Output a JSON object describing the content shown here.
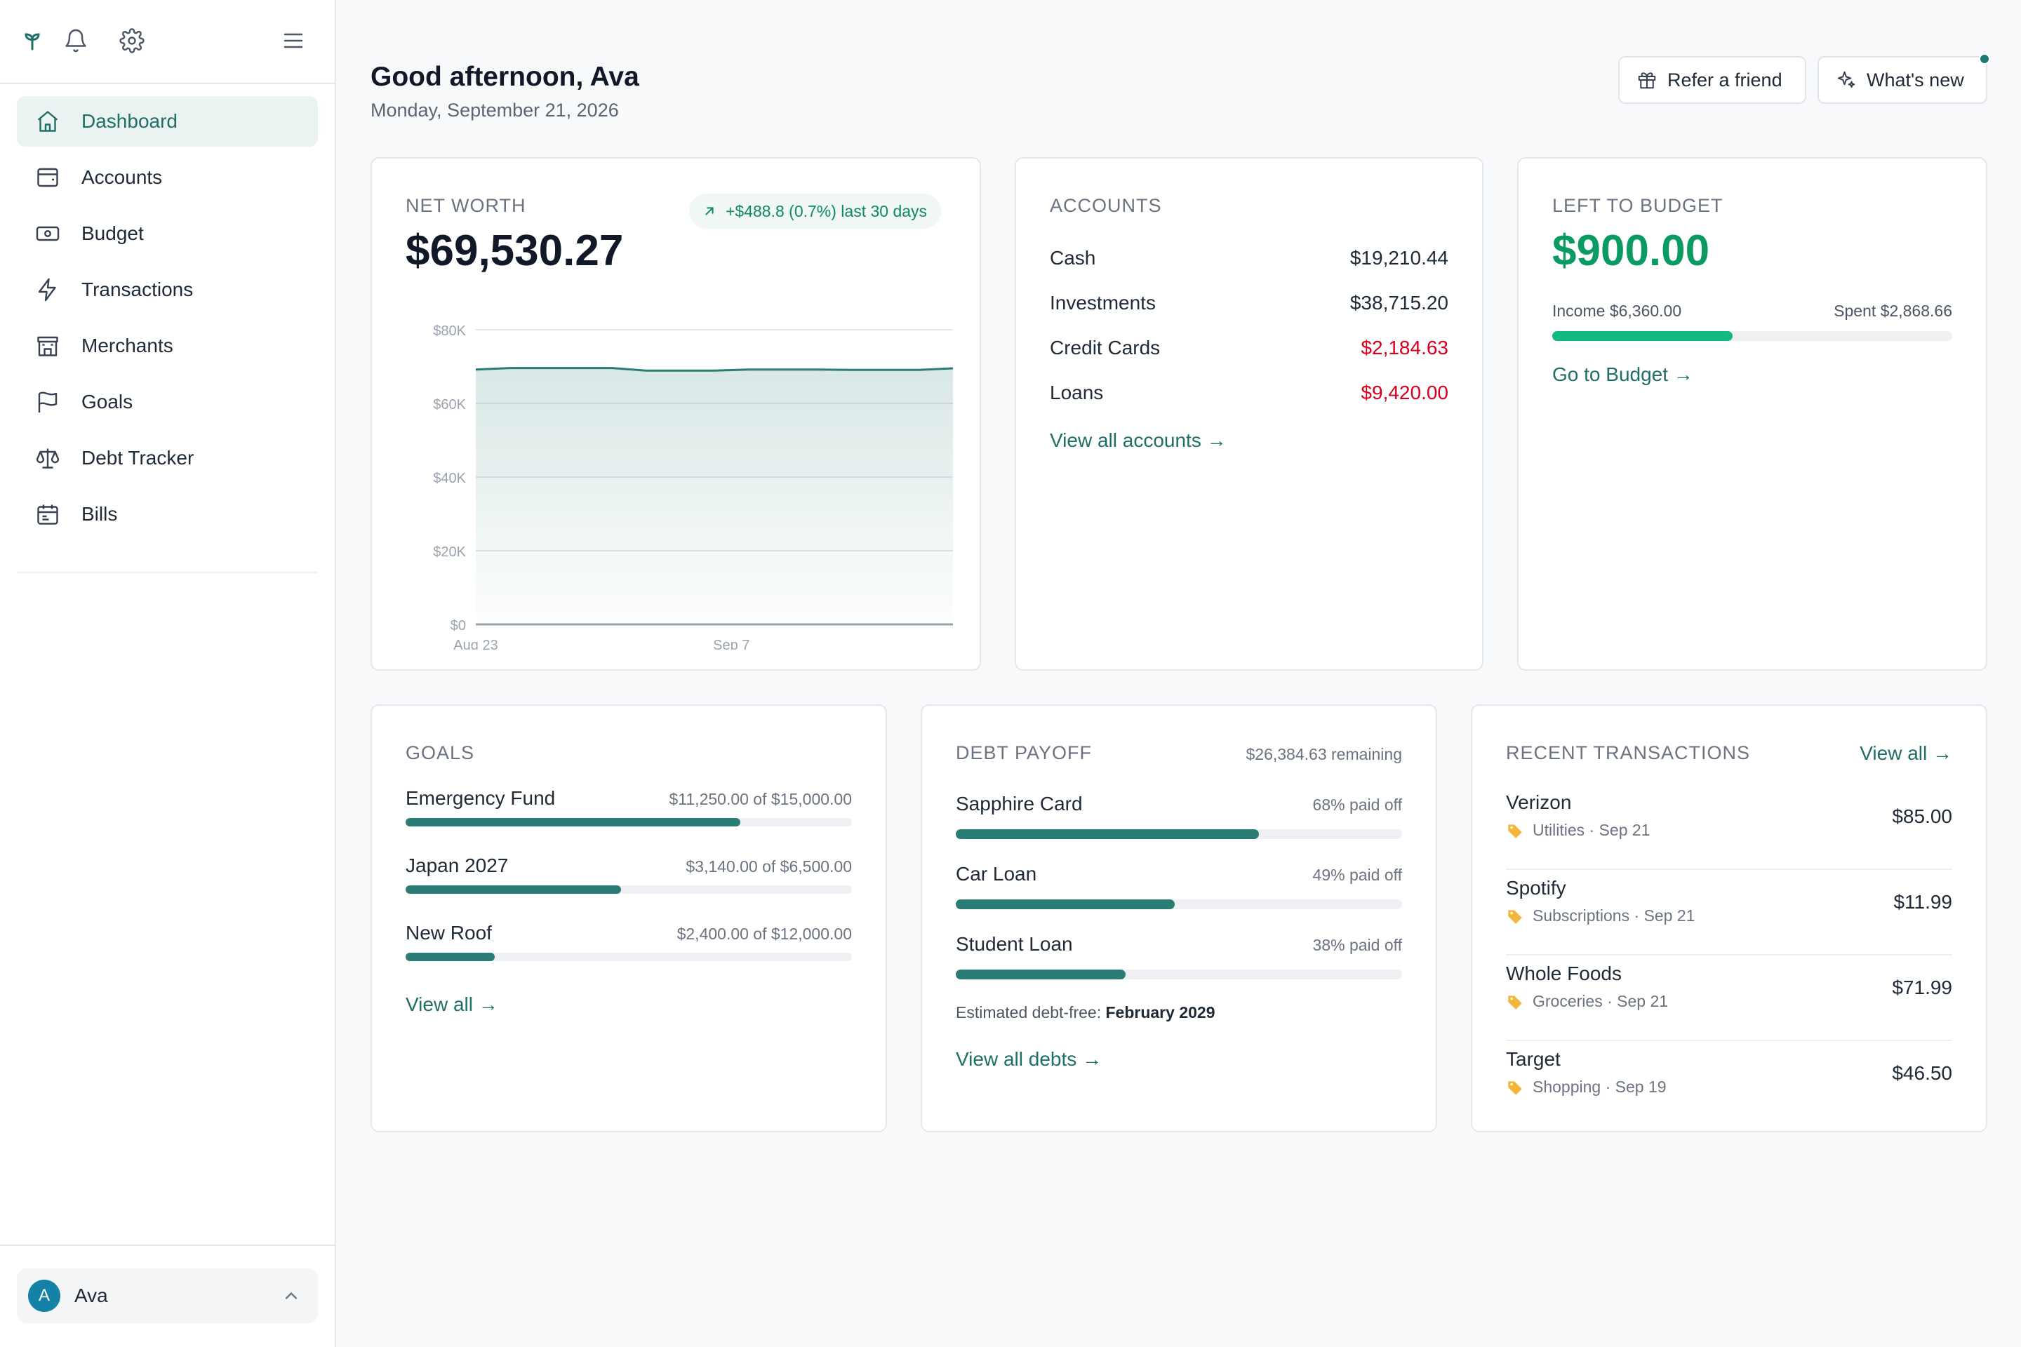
{
  "sidebar": {
    "nav": [
      {
        "label": "Dashboard",
        "icon": "home-icon",
        "active": true
      },
      {
        "label": "Accounts",
        "icon": "wallet-icon"
      },
      {
        "label": "Budget",
        "icon": "banknote-icon"
      },
      {
        "label": "Transactions",
        "icon": "lightning-icon"
      },
      {
        "label": "Merchants",
        "icon": "storefront-icon"
      },
      {
        "label": "Goals",
        "icon": "flag-icon"
      },
      {
        "label": "Debt Tracker",
        "icon": "scale-icon"
      },
      {
        "label": "Bills",
        "icon": "calendar-icon"
      }
    ],
    "user": {
      "initial": "A",
      "name": "Ava"
    }
  },
  "header": {
    "greeting": "Good afternoon, Ava",
    "date": "Monday, September 21, 2026",
    "refer_label": "Refer a friend",
    "whatsnew_label": "What's new"
  },
  "net_worth": {
    "label": "NET WORTH",
    "value": "$69,530.27",
    "change": "+$488.8 (0.7%) last 30 days"
  },
  "chart_data": {
    "type": "area",
    "x": [
      "Aug 23",
      "Aug 25",
      "Aug 27",
      "Aug 29",
      "Aug 31",
      "Sep 2",
      "Sep 4",
      "Sep 6",
      "Sep 8",
      "Sep 10",
      "Sep 12",
      "Sep 14",
      "Sep 16",
      "Sep 18",
      "Sep 20"
    ],
    "values": [
      69200,
      69600,
      69600,
      69600,
      69600,
      68900,
      68900,
      68900,
      69200,
      69200,
      69200,
      69100,
      69100,
      69100,
      69530
    ],
    "xticks": [
      "Aug 23",
      "Sep 7"
    ],
    "yticks": [
      "$0",
      "$20K",
      "$40K",
      "$60K",
      "$80K"
    ],
    "ylim": [
      0,
      80000
    ],
    "grid": true,
    "color": "#2a7d74"
  },
  "accounts": {
    "label": "ACCOUNTS",
    "rows": [
      {
        "name": "Cash",
        "amount": "$19,210.44",
        "negative": false
      },
      {
        "name": "Investments",
        "amount": "$38,715.20",
        "negative": false
      },
      {
        "name": "Credit Cards",
        "amount": "$2,184.63",
        "negative": true
      },
      {
        "name": "Loans",
        "amount": "$9,420.00",
        "negative": true
      }
    ],
    "link": "View all accounts →"
  },
  "budget": {
    "label": "LEFT TO BUDGET",
    "value": "$900.00",
    "income": "Income $6,360.00",
    "spent": "Spent $2,868.66",
    "progress": 0.451,
    "link": "Go to Budget →"
  },
  "goals": {
    "label": "GOALS",
    "items": [
      {
        "name": "Emergency Fund",
        "amount": "$11,250.00 of $15,000.00",
        "progress": 0.75
      },
      {
        "name": "Japan 2027",
        "amount": "$3,140.00 of $6,500.00",
        "progress": 0.483
      },
      {
        "name": "New Roof",
        "amount": "$2,400.00 of $12,000.00",
        "progress": 0.2
      }
    ],
    "link": "View all →"
  },
  "debt": {
    "label": "DEBT PAYOFF",
    "remaining": "$26,384.63 remaining",
    "items": [
      {
        "name": "Sapphire Card",
        "pct": "68% paid off",
        "progress": 0.68
      },
      {
        "name": "Car Loan",
        "pct": "49% paid off",
        "progress": 0.49
      },
      {
        "name": "Student Loan",
        "pct": "38% paid off",
        "progress": 0.38
      }
    ],
    "estimate_prefix": "Estimated debt-free: ",
    "estimate_date": "February 2029",
    "link": "View all debts →"
  },
  "transactions": {
    "label": "RECENT TRANSACTIONS",
    "view_all": "View all →",
    "items": [
      {
        "name": "Verizon",
        "meta": "Utilities · Sep 21",
        "amount": "$85.00"
      },
      {
        "name": "Spotify",
        "meta": "Subscriptions · Sep 21",
        "amount": "$11.99"
      },
      {
        "name": "Whole Foods",
        "meta": "Groceries · Sep 21",
        "amount": "$71.99"
      },
      {
        "name": "Target",
        "meta": "Shopping · Sep 19",
        "amount": "$46.50"
      }
    ]
  }
}
